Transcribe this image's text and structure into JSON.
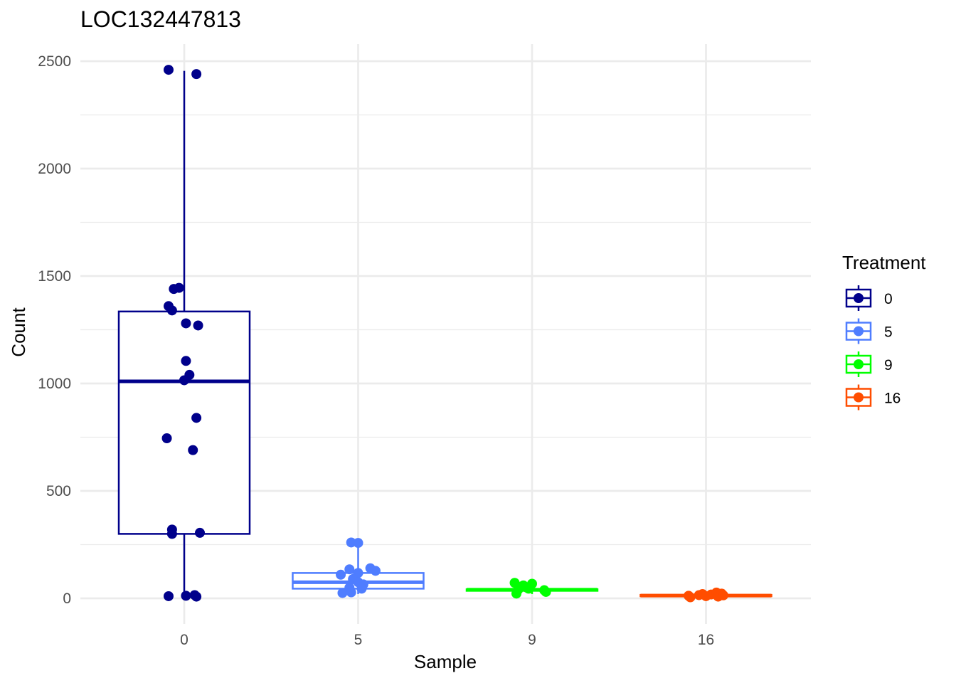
{
  "chart_data": {
    "type": "box",
    "title": "LOC132447813",
    "xlabel": "Sample",
    "ylabel": "Count",
    "categories": [
      "0",
      "5",
      "9",
      "16"
    ],
    "ylim": [
      -110,
      2585
    ],
    "yticks": [
      0,
      500,
      1000,
      1500,
      2000,
      2500
    ],
    "grid": true,
    "legend": {
      "title": "Treatment",
      "position": "right",
      "entries": [
        "0",
        "5",
        "9",
        "16"
      ]
    },
    "series": [
      {
        "category": "0",
        "color": "#00008B",
        "box": {
          "q1": 300,
          "median": 1010,
          "q3": 1335,
          "whisker_low": 5,
          "whisker_high": 2455
        },
        "points": [
          {
            "dx": -0.09,
            "y": 2460
          },
          {
            "dx": 0.07,
            "y": 2440
          },
          {
            "dx": -0.06,
            "y": 1440
          },
          {
            "dx": -0.03,
            "y": 1445
          },
          {
            "dx": -0.09,
            "y": 1360
          },
          {
            "dx": -0.07,
            "y": 1340
          },
          {
            "dx": 0.01,
            "y": 1280
          },
          {
            "dx": 0.08,
            "y": 1270
          },
          {
            "dx": 0.01,
            "y": 1105
          },
          {
            "dx": 0.03,
            "y": 1040
          },
          {
            "dx": 0.0,
            "y": 1015
          },
          {
            "dx": 0.07,
            "y": 840
          },
          {
            "dx": -0.1,
            "y": 745
          },
          {
            "dx": 0.05,
            "y": 690
          },
          {
            "dx": -0.07,
            "y": 320
          },
          {
            "dx": -0.07,
            "y": 300
          },
          {
            "dx": 0.09,
            "y": 305
          },
          {
            "dx": -0.09,
            "y": 10
          },
          {
            "dx": 0.01,
            "y": 12
          },
          {
            "dx": 0.06,
            "y": 15
          },
          {
            "dx": 0.07,
            "y": 8
          }
        ]
      },
      {
        "category": "5",
        "color": "#4F7DFF",
        "box": {
          "q1": 45,
          "median": 75,
          "q3": 118,
          "whisker_low": 20,
          "whisker_high": 258
        },
        "points": [
          {
            "dx": -0.04,
            "y": 260
          },
          {
            "dx": 0.0,
            "y": 258
          },
          {
            "dx": 0.07,
            "y": 140
          },
          {
            "dx": 0.1,
            "y": 128
          },
          {
            "dx": -0.05,
            "y": 135
          },
          {
            "dx": 0.0,
            "y": 118
          },
          {
            "dx": -0.1,
            "y": 110
          },
          {
            "dx": -0.03,
            "y": 90
          },
          {
            "dx": 0.0,
            "y": 75
          },
          {
            "dx": 0.03,
            "y": 65
          },
          {
            "dx": -0.05,
            "y": 50
          },
          {
            "dx": 0.02,
            "y": 45
          },
          {
            "dx": -0.09,
            "y": 25
          },
          {
            "dx": -0.04,
            "y": 28
          }
        ]
      },
      {
        "category": "9",
        "color": "#00FF00",
        "box": {
          "q1": 35,
          "median": 40,
          "q3": 42,
          "whisker_low": 20,
          "whisker_high": 70
        },
        "points": [
          {
            "dx": -0.1,
            "y": 72
          },
          {
            "dx": -0.05,
            "y": 60
          },
          {
            "dx": 0.0,
            "y": 68
          },
          {
            "dx": -0.03,
            "y": 50
          },
          {
            "dx": -0.08,
            "y": 40
          },
          {
            "dx": 0.07,
            "y": 38
          },
          {
            "dx": 0.08,
            "y": 30
          },
          {
            "dx": -0.09,
            "y": 22
          },
          {
            "dx": -0.02,
            "y": 45
          }
        ]
      },
      {
        "category": "16",
        "color": "#FF4D00",
        "box": {
          "q1": 10,
          "median": 13,
          "q3": 16,
          "whisker_low": 5,
          "whisker_high": 27
        },
        "points": [
          {
            "dx": -0.1,
            "y": 12
          },
          {
            "dx": -0.09,
            "y": 5
          },
          {
            "dx": -0.04,
            "y": 15
          },
          {
            "dx": -0.02,
            "y": 20
          },
          {
            "dx": 0.0,
            "y": 10
          },
          {
            "dx": 0.03,
            "y": 18
          },
          {
            "dx": 0.06,
            "y": 27
          },
          {
            "dx": 0.07,
            "y": 8
          },
          {
            "dx": 0.09,
            "y": 22
          },
          {
            "dx": 0.1,
            "y": 14
          }
        ]
      }
    ]
  }
}
